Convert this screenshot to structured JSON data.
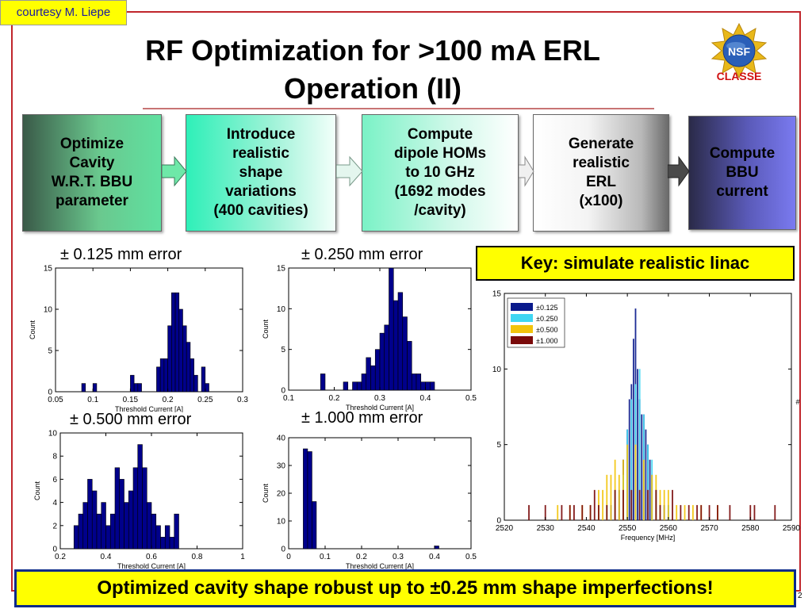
{
  "credit": "courtesy M. Liepe",
  "title_line1": "RF Optimization for >100 mA ERL",
  "title_line2": "Operation (II)",
  "logo": {
    "seal_text": "NSF",
    "label": "CLASSE"
  },
  "flow": [
    {
      "lines": [
        "Optimize",
        "Cavity",
        "W.R.T. BBU",
        "parameter"
      ]
    },
    {
      "lines": [
        "Introduce",
        "realistic",
        "shape",
        "variations",
        "(400 cavities)"
      ]
    },
    {
      "lines": [
        "Compute",
        "dipole HOMs",
        "to 10 GHz",
        "(1692 modes",
        "/cavity)"
      ]
    },
    {
      "lines": [
        "Generate",
        "realistic",
        "ERL",
        "(x100)"
      ]
    },
    {
      "lines": [
        "Compute",
        "BBU",
        "current"
      ]
    }
  ],
  "key_text": "Key: simulate realistic linac",
  "footer_text": "Optimized cavity shape robust up to ±0.25 mm shape imperfections!",
  "page_number": "2",
  "chart_data": [
    {
      "type": "bar",
      "label": "± 0.125 mm error",
      "xlabel": "Threshold Current [A]",
      "ylabel": "Count",
      "xlim": [
        0.05,
        0.3
      ],
      "ylim": [
        0,
        15
      ],
      "xticks": [
        "0.05",
        "0.1",
        "0.15",
        "0.2",
        "0.25",
        "0.3"
      ],
      "xtick_values": [
        0.05,
        0.1,
        0.15,
        0.2,
        0.25,
        0.3
      ],
      "yticks": [
        0,
        5,
        10,
        15
      ],
      "bin_start": 0.085,
      "bin_width": 0.005,
      "values": [
        1,
        0,
        0,
        1,
        0,
        0,
        0,
        0,
        0,
        0,
        0,
        0,
        0,
        2,
        1,
        1,
        0,
        0,
        0,
        0,
        3,
        4,
        4,
        8,
        12,
        12,
        10,
        8,
        6,
        4,
        2,
        0,
        3,
        1
      ]
    },
    {
      "type": "bar",
      "label": "± 0.250 mm error",
      "xlabel": "Threshold Current [A]",
      "ylabel": "Count",
      "xlim": [
        0.1,
        0.5
      ],
      "ylim": [
        0,
        15
      ],
      "xticks": [
        "0.1",
        "0.2",
        "0.3",
        "0.4",
        "0.5"
      ],
      "xtick_values": [
        0.1,
        0.2,
        0.3,
        0.4,
        0.5
      ],
      "yticks": [
        0,
        5,
        10,
        15
      ],
      "bin_start": 0.17,
      "bin_width": 0.01,
      "values": [
        2,
        0,
        0,
        0,
        0,
        1,
        0,
        1,
        1,
        2,
        4,
        3,
        5,
        7,
        8,
        15,
        11,
        12,
        9,
        6,
        2,
        2,
        1,
        1,
        1
      ]
    },
    {
      "type": "bar",
      "label": "± 0.500 mm error",
      "xlabel": "Threshold Current [A]",
      "ylabel": "Count",
      "xlim": [
        0.2,
        1.0
      ],
      "ylim": [
        0,
        10
      ],
      "xticks": [
        "0.2",
        "0.4",
        "0.6",
        "0.8",
        "1"
      ],
      "xtick_values": [
        0.2,
        0.4,
        0.6,
        0.8,
        1.0
      ],
      "yticks": [
        0,
        2,
        4,
        6,
        8,
        10
      ],
      "bin_start": 0.26,
      "bin_width": 0.02,
      "values": [
        2,
        3,
        4,
        6,
        5,
        3,
        4,
        2,
        3,
        7,
        6,
        4,
        5,
        7,
        9,
        7,
        4,
        3,
        2,
        1,
        2,
        1,
        3
      ]
    },
    {
      "type": "bar",
      "label": "± 1.000 mm error",
      "xlabel": "Threshold Current [A]",
      "ylabel": "Count",
      "xlim": [
        0,
        0.5
      ],
      "ylim": [
        0,
        40
      ],
      "xticks": [
        "0",
        "0.1",
        "0.2",
        "0.3",
        "0.4",
        "0.5"
      ],
      "xtick_values": [
        0,
        0.1,
        0.2,
        0.3,
        0.4,
        0.5
      ],
      "yticks": [
        0,
        10,
        20,
        30,
        40
      ],
      "bin_start": 0.04,
      "bin_width": 0.012,
      "values": [
        36,
        35,
        17,
        0,
        0,
        0,
        0,
        0,
        0,
        0,
        0,
        0,
        0,
        0,
        0,
        0,
        0,
        0,
        0,
        0,
        0,
        0,
        0,
        0,
        0,
        0,
        0,
        0,
        0,
        0,
        1
      ]
    },
    {
      "type": "bar",
      "xlabel": "Frequency [MHz]",
      "ylabel": "#",
      "xlim": [
        2520,
        2590
      ],
      "ylim": [
        0,
        15
      ],
      "xticks": [
        "2520",
        "2530",
        "2540",
        "2550",
        "2560",
        "2570",
        "2580",
        "2590"
      ],
      "xtick_values": [
        2520,
        2530,
        2540,
        2550,
        2560,
        2570,
        2580,
        2590
      ],
      "yticks": [
        0,
        5,
        10,
        15
      ],
      "legend": [
        "±0.125",
        "±0.250",
        "±0.500",
        "±1.000"
      ],
      "legend_position": "top-left",
      "series_colors": [
        "#0a1a8c",
        "#3fd6f2",
        "#f2c40c",
        "#7a0a0a"
      ],
      "series": [
        {
          "name": "±0.125",
          "x": [
            2546,
            2547,
            2548,
            2549,
            2550,
            2550.5,
            2551,
            2551.5,
            2552,
            2552.5,
            2553,
            2553.5,
            2554,
            2554.5,
            2555,
            2555.5,
            2556,
            2557,
            2558,
            2559,
            2560
          ],
          "values": [
            1,
            2,
            2,
            4,
            6,
            8,
            9,
            12,
            14,
            10,
            8,
            7,
            7,
            6,
            5,
            4,
            3,
            2,
            1,
            1,
            1
          ]
        },
        {
          "name": "±0.250",
          "x": [
            2545,
            2547,
            2549,
            2550,
            2551,
            2552,
            2553,
            2554,
            2555,
            2556,
            2557,
            2558,
            2560
          ],
          "values": [
            1,
            2,
            3,
            6,
            8,
            9,
            10,
            7,
            5,
            4,
            2,
            1,
            1
          ]
        },
        {
          "name": "±0.500",
          "x": [
            2533,
            2536,
            2539,
            2541,
            2543,
            2544,
            2545,
            2546,
            2547,
            2548,
            2549,
            2550,
            2552,
            2554,
            2556,
            2557,
            2558,
            2559,
            2560,
            2562,
            2564,
            2566,
            2568,
            2572
          ],
          "values": [
            1,
            1,
            1,
            1,
            2,
            2,
            3,
            3,
            4,
            3,
            4,
            5,
            5,
            4,
            3,
            3,
            2,
            2,
            2,
            1,
            1,
            1,
            1,
            1
          ]
        },
        {
          "name": "±1.000",
          "x": [
            2526,
            2530,
            2534,
            2536,
            2537,
            2539,
            2541,
            2542,
            2543,
            2545,
            2547,
            2549,
            2551,
            2553,
            2555,
            2557,
            2558,
            2561,
            2563,
            2565,
            2567,
            2568,
            2570,
            2572,
            2575,
            2580,
            2581,
            2586
          ],
          "values": [
            1,
            1,
            1,
            1,
            1,
            1,
            1,
            2,
            1,
            1,
            2,
            2,
            2,
            2,
            2,
            2,
            1,
            2,
            1,
            1,
            1,
            1,
            1,
            1,
            1,
            1,
            1,
            1
          ]
        }
      ]
    }
  ]
}
